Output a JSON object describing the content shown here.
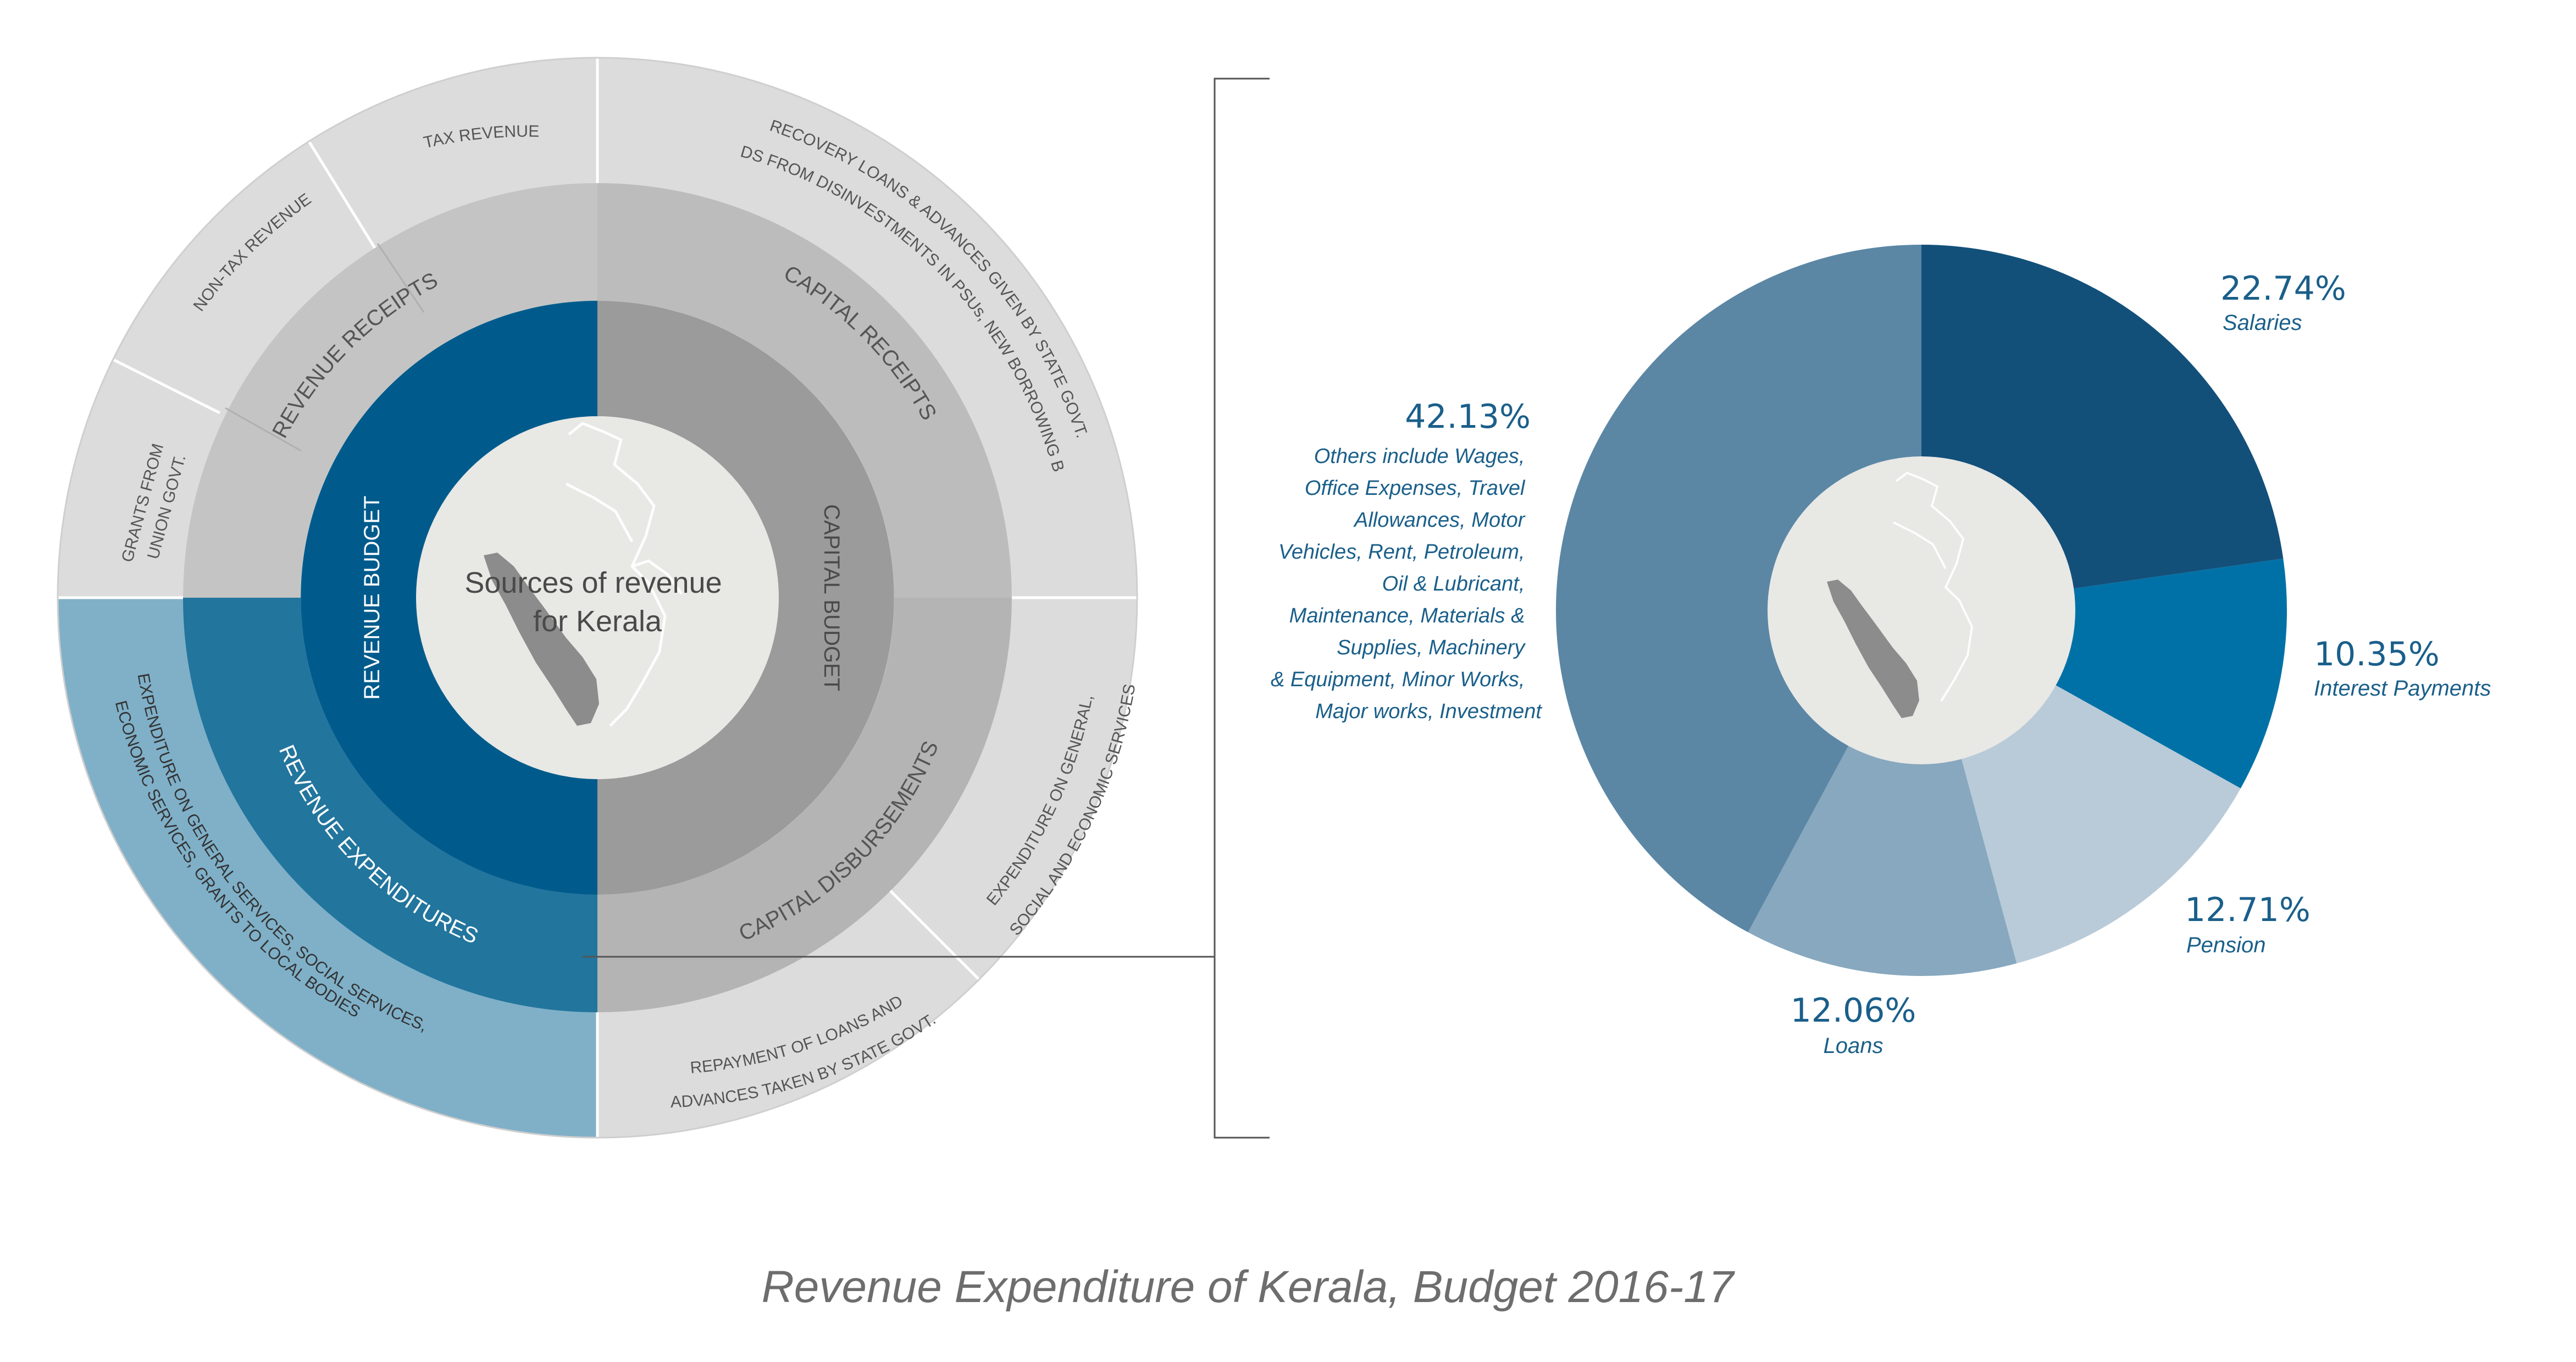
{
  "title": "Revenue Expenditure of Kerala, Budget 2016-17",
  "colors": {
    "outer_ring": "#dcdcdc",
    "middle_ring_gray": "#c4c4c4",
    "inner_ring_gray": "#9b9b9b",
    "capital_receipts_gray": "#bcbcbc",
    "revenue_budget": "#005b8c",
    "revenue_expenditures": "#22759d",
    "revenue_expenditure_outer": "#7fb0c8",
    "center": "#e8e8e5",
    "map": "#8c8c8c",
    "label_blue": "#1a5f8a"
  },
  "sunburst": {
    "center_label": [
      "Sources of revenue",
      "for Kerala"
    ],
    "inner": {
      "revenue_budget": "REVENUE  BUDGET",
      "capital_budget": "CAPITAL  BUDGET"
    },
    "middle": {
      "revenue_receipts": "REVENUE RECEIPTS",
      "capital_receipts": "CAPITAL RECEIPTS",
      "capital_disbursements": "CAPITAL  DISBURSEMENTS",
      "revenue_expenditures": "REVENUE  EXPENDITURES"
    },
    "outer": {
      "grants": [
        "GRANTS FROM",
        "UNION GOVT."
      ],
      "non_tax": "NON-TAX REVENUE",
      "tax": "TAX REVENUE",
      "recovery": [
        "RECOVERY LOANS & ADVANCES GIVEN BY STATE GOVT.",
        "PROCEEDS FROM DISINVESTMENTS IN PSUs, NEW BORROWING BY GOVT."
      ],
      "expenditure_general": [
        "EXPENDITURE ON GENERAL,",
        "SOCIAL AND ECONOMIC SERVICES"
      ],
      "repayment": [
        "REPAYMENT OF LOANS AND",
        "ADVANCES TAKEN BY STATE GOVT."
      ],
      "revenue_exp_detail": [
        "EXPENDITURE ON GENERAL SERVICES, SOCIAL SERVICES,",
        "ECONOMIC SERVICES, GRANTS TO LOCAL BODIES"
      ]
    }
  },
  "chart_data": {
    "type": "pie",
    "title": "Revenue Expenditure of Kerala, Budget 2016-17",
    "slices": [
      {
        "label": "Salaries",
        "value": 22.74,
        "pct_label": "22.74%",
        "color": "#12507a"
      },
      {
        "label": "Interest Payments",
        "value": 10.35,
        "pct_label": "10.35%",
        "color": "#0071a6"
      },
      {
        "label": "Pension",
        "value": 12.71,
        "pct_label": "12.71%",
        "color": "#b9cbd8"
      },
      {
        "label": "Loans",
        "value": 12.06,
        "pct_label": "12.06%",
        "color": "#87a8be"
      },
      {
        "label": "Others",
        "value": 42.13,
        "pct_label": "42.13%",
        "color": "#5b87a5",
        "description": [
          "Others include Wages,",
          "Office Expenses, Travel",
          "Allowances, Motor",
          "Vehicles, Rent, Petroleum,",
          "Oil & Lubricant,",
          "Maintenance, Materials &",
          "Supplies, Machinery",
          "& Equipment, Minor Works,",
          "Major works, Investment"
        ]
      }
    ]
  }
}
